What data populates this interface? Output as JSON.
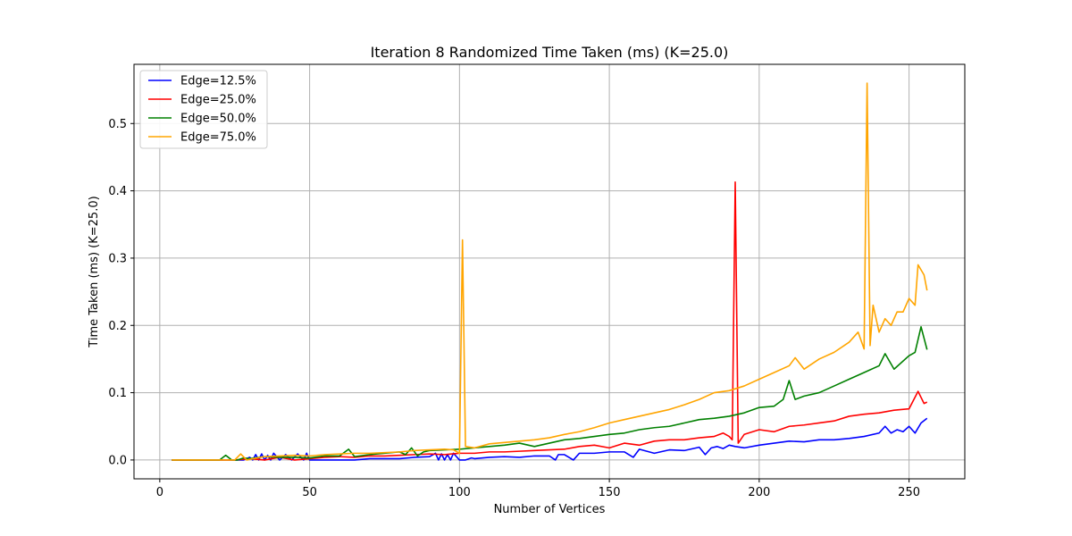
{
  "chart_data": {
    "type": "line",
    "title": "Iteration 8 Randomized Time Taken (ms) (K=25.0)",
    "xlabel": "Number of Vertices",
    "ylabel": "Time Taken (ms) (K=25.0)",
    "xlim": [
      -8.6,
      268.6
    ],
    "ylim": [
      -0.028,
      0.588
    ],
    "xticks": [
      0,
      50,
      100,
      150,
      200,
      250
    ],
    "yticks": [
      0.0,
      0.1,
      0.2,
      0.3,
      0.4,
      0.5
    ],
    "xtick_labels": [
      "0",
      "50",
      "100",
      "150",
      "200",
      "250"
    ],
    "ytick_labels": [
      "0.0",
      "0.1",
      "0.2",
      "0.3",
      "0.4",
      "0.5"
    ],
    "grid": true,
    "legend_position": "top-left",
    "series": [
      {
        "name": "Edge=12.5%",
        "color": "#0000ff",
        "x": [
          4,
          10,
          20,
          28,
          30,
          31,
          32,
          33,
          34,
          35,
          36,
          37,
          38,
          40,
          42,
          44,
          46,
          48,
          49,
          50,
          52,
          56,
          60,
          65,
          70,
          80,
          85,
          90,
          92,
          93,
          94,
          95,
          96,
          97,
          98,
          100,
          102,
          104,
          105,
          110,
          115,
          120,
          125,
          130,
          132,
          133,
          135,
          138,
          140,
          145,
          150,
          155,
          158,
          160,
          165,
          170,
          175,
          180,
          182,
          184,
          186,
          188,
          190,
          192,
          195,
          200,
          205,
          210,
          215,
          220,
          225,
          230,
          235,
          240,
          242,
          244,
          246,
          248,
          250,
          252,
          254,
          256
        ],
        "values": [
          0.0,
          0.0,
          0.0,
          0.0,
          0.004,
          0.0,
          0.008,
          0.0,
          0.009,
          0.0,
          0.007,
          0.0,
          0.01,
          0.0,
          0.008,
          0.0,
          0.009,
          0.0,
          0.01,
          0.0,
          0.0,
          0.0,
          0.0,
          0.0,
          0.002,
          0.002,
          0.004,
          0.005,
          0.01,
          0.0,
          0.009,
          0.0,
          0.008,
          0.0,
          0.01,
          0.0,
          0.0,
          0.003,
          0.002,
          0.004,
          0.005,
          0.004,
          0.006,
          0.006,
          0.0,
          0.008,
          0.008,
          0.0,
          0.01,
          0.01,
          0.012,
          0.012,
          0.004,
          0.016,
          0.01,
          0.015,
          0.014,
          0.019,
          0.008,
          0.018,
          0.02,
          0.017,
          0.022,
          0.02,
          0.018,
          0.022,
          0.025,
          0.028,
          0.027,
          0.03,
          0.03,
          0.032,
          0.035,
          0.04,
          0.05,
          0.04,
          0.045,
          0.042,
          0.05,
          0.04,
          0.055,
          0.062
        ]
      },
      {
        "name": "Edge=25.0%",
        "color": "#ff0000",
        "x": [
          4,
          10,
          20,
          25,
          30,
          35,
          40,
          45,
          50,
          55,
          60,
          65,
          70,
          75,
          80,
          85,
          90,
          95,
          100,
          105,
          110,
          115,
          120,
          125,
          130,
          135,
          140,
          145,
          150,
          155,
          160,
          165,
          170,
          175,
          180,
          185,
          188,
          190,
          191,
          192,
          193,
          195,
          200,
          205,
          210,
          215,
          220,
          225,
          230,
          235,
          240,
          245,
          250,
          253,
          255,
          256
        ],
        "values": [
          0.0,
          0.0,
          0.0,
          0.0,
          0.002,
          0.0,
          0.004,
          0.0,
          0.002,
          0.004,
          0.005,
          0.004,
          0.006,
          0.006,
          0.007,
          0.008,
          0.009,
          0.008,
          0.01,
          0.01,
          0.012,
          0.012,
          0.013,
          0.014,
          0.015,
          0.016,
          0.02,
          0.022,
          0.018,
          0.025,
          0.022,
          0.028,
          0.03,
          0.03,
          0.033,
          0.035,
          0.04,
          0.035,
          0.03,
          0.413,
          0.025,
          0.038,
          0.045,
          0.042,
          0.05,
          0.052,
          0.055,
          0.058,
          0.065,
          0.068,
          0.07,
          0.074,
          0.076,
          0.102,
          0.084,
          0.086
        ]
      },
      {
        "name": "Edge=50.0%",
        "color": "#008000",
        "x": [
          4,
          10,
          20,
          22,
          24,
          26,
          28,
          30,
          35,
          40,
          45,
          50,
          55,
          60,
          63,
          65,
          70,
          75,
          80,
          82,
          84,
          86,
          88,
          90,
          95,
          100,
          105,
          110,
          115,
          120,
          125,
          130,
          135,
          140,
          145,
          150,
          155,
          160,
          165,
          170,
          175,
          180,
          185,
          190,
          195,
          200,
          205,
          208,
          210,
          212,
          215,
          220,
          225,
          230,
          235,
          240,
          242,
          245,
          250,
          252,
          254,
          256
        ],
        "values": [
          0.0,
          0.0,
          0.0,
          0.007,
          0.0,
          0.0,
          0.003,
          0.002,
          0.005,
          0.004,
          0.004,
          0.003,
          0.006,
          0.006,
          0.016,
          0.005,
          0.008,
          0.01,
          0.012,
          0.008,
          0.018,
          0.006,
          0.012,
          0.014,
          0.015,
          0.016,
          0.018,
          0.02,
          0.022,
          0.025,
          0.02,
          0.025,
          0.03,
          0.032,
          0.035,
          0.038,
          0.04,
          0.045,
          0.048,
          0.05,
          0.055,
          0.06,
          0.062,
          0.065,
          0.07,
          0.078,
          0.08,
          0.09,
          0.118,
          0.09,
          0.095,
          0.1,
          0.11,
          0.12,
          0.13,
          0.14,
          0.158,
          0.135,
          0.155,
          0.16,
          0.198,
          0.164
        ]
      },
      {
        "name": "Edge=75.0%",
        "color": "#ffa500",
        "x": [
          4,
          10,
          20,
          25,
          27,
          29,
          30,
          35,
          40,
          45,
          50,
          55,
          60,
          65,
          70,
          75,
          80,
          85,
          90,
          95,
          98,
          100,
          101,
          102,
          105,
          110,
          115,
          120,
          125,
          130,
          135,
          140,
          145,
          150,
          155,
          160,
          165,
          170,
          175,
          180,
          185,
          190,
          195,
          200,
          205,
          210,
          212,
          215,
          220,
          225,
          230,
          233,
          235,
          236,
          237,
          238,
          240,
          242,
          244,
          246,
          248,
          250,
          252,
          253,
          255,
          256
        ],
        "values": [
          0.0,
          0.0,
          0.0,
          0.0,
          0.009,
          0.0,
          0.001,
          0.005,
          0.006,
          0.007,
          0.006,
          0.008,
          0.009,
          0.01,
          0.01,
          0.011,
          0.012,
          0.014,
          0.015,
          0.016,
          0.015,
          0.01,
          0.327,
          0.02,
          0.018,
          0.024,
          0.026,
          0.028,
          0.03,
          0.033,
          0.038,
          0.042,
          0.048,
          0.055,
          0.06,
          0.065,
          0.07,
          0.075,
          0.082,
          0.09,
          0.1,
          0.103,
          0.11,
          0.12,
          0.13,
          0.14,
          0.152,
          0.135,
          0.15,
          0.16,
          0.175,
          0.19,
          0.165,
          0.56,
          0.17,
          0.23,
          0.19,
          0.21,
          0.2,
          0.22,
          0.22,
          0.24,
          0.23,
          0.29,
          0.275,
          0.252
        ]
      }
    ]
  }
}
